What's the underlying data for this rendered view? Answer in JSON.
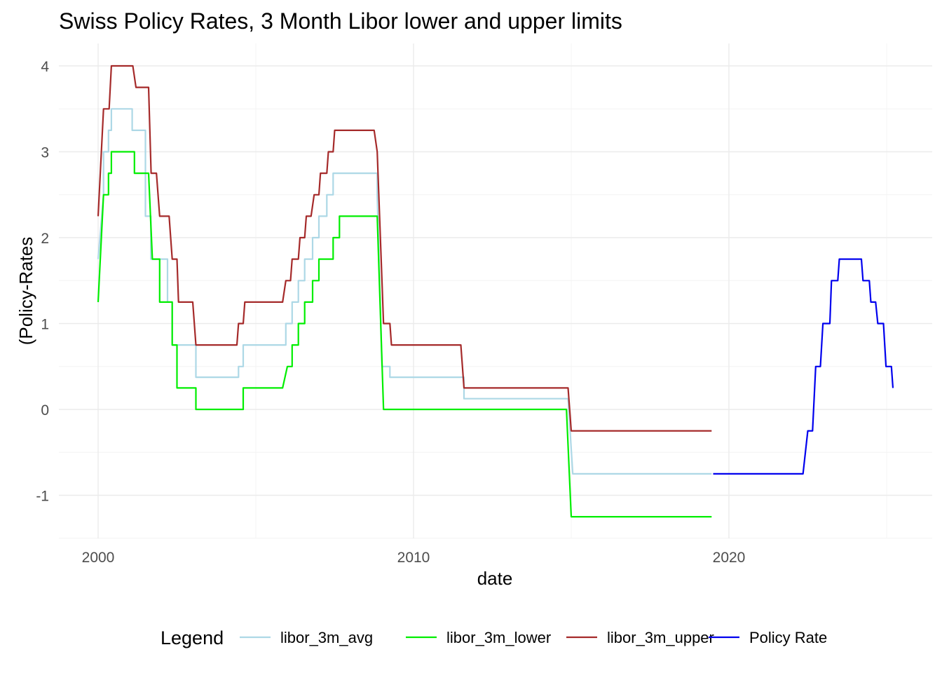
{
  "chart_data": {
    "type": "line",
    "title": "Swiss Policy Rates, 3 Month Libor lower and upper limits",
    "xlabel": "date",
    "ylabel": "(Policy-Rates",
    "x_ticks": [
      2000,
      2010,
      2020
    ],
    "y_ticks": [
      -1,
      0,
      1,
      2,
      3,
      4
    ],
    "xlim": [
      1999.0,
      2026.4
    ],
    "ylim": [
      -1.5,
      4.25
    ],
    "grid": true,
    "legend": {
      "title": "Legend",
      "position": "bottom",
      "entries": [
        "libor_3m_avg",
        "libor_3m_lower",
        "libor_3m_upper",
        "Policy Rate"
      ]
    },
    "series": [
      {
        "name": "libor_3m_avg",
        "color": "#add8e6",
        "points": [
          [
            2000.0,
            1.75
          ],
          [
            2000.17,
            2.5
          ],
          [
            2000.17,
            3.0
          ],
          [
            2000.33,
            3.0
          ],
          [
            2000.33,
            3.25
          ],
          [
            2000.42,
            3.25
          ],
          [
            2000.42,
            3.5
          ],
          [
            2001.08,
            3.5
          ],
          [
            2001.08,
            3.25
          ],
          [
            2001.5,
            3.25
          ],
          [
            2001.5,
            2.25
          ],
          [
            2001.67,
            2.25
          ],
          [
            2001.67,
            1.75
          ],
          [
            2002.2,
            1.75
          ],
          [
            2002.2,
            1.25
          ],
          [
            2002.35,
            1.25
          ],
          [
            2002.35,
            0.75
          ],
          [
            2003.1,
            0.75
          ],
          [
            2003.1,
            0.375
          ],
          [
            2004.45,
            0.375
          ],
          [
            2004.45,
            0.5
          ],
          [
            2004.6,
            0.5
          ],
          [
            2004.6,
            0.75
          ],
          [
            2005.95,
            0.75
          ],
          [
            2005.95,
            1.0
          ],
          [
            2006.15,
            1.0
          ],
          [
            2006.15,
            1.25
          ],
          [
            2006.35,
            1.25
          ],
          [
            2006.35,
            1.5
          ],
          [
            2006.55,
            1.5
          ],
          [
            2006.55,
            1.75
          ],
          [
            2006.8,
            1.75
          ],
          [
            2006.8,
            2.0
          ],
          [
            2007.0,
            2.0
          ],
          [
            2007.0,
            2.25
          ],
          [
            2007.25,
            2.25
          ],
          [
            2007.25,
            2.5
          ],
          [
            2007.45,
            2.5
          ],
          [
            2007.45,
            2.75
          ],
          [
            2008.85,
            2.75
          ],
          [
            2008.85,
            2.5
          ],
          [
            2009.0,
            0.5
          ],
          [
            2009.25,
            0.5
          ],
          [
            2009.25,
            0.375
          ],
          [
            2011.6,
            0.375
          ],
          [
            2011.6,
            0.125
          ],
          [
            2014.9,
            0.125
          ],
          [
            2015.05,
            -0.75
          ],
          [
            2019.45,
            -0.75
          ]
        ]
      },
      {
        "name": "libor_3m_lower",
        "color": "#00ee00",
        "points": [
          [
            2000.0,
            1.25
          ],
          [
            2000.17,
            2.5
          ],
          [
            2000.33,
            2.5
          ],
          [
            2000.33,
            2.75
          ],
          [
            2000.42,
            2.75
          ],
          [
            2000.42,
            3.0
          ],
          [
            2001.15,
            3.0
          ],
          [
            2001.15,
            2.75
          ],
          [
            2001.6,
            2.75
          ],
          [
            2001.72,
            1.75
          ],
          [
            2001.95,
            1.75
          ],
          [
            2001.95,
            1.25
          ],
          [
            2002.35,
            1.25
          ],
          [
            2002.35,
            0.75
          ],
          [
            2002.5,
            0.75
          ],
          [
            2002.5,
            0.25
          ],
          [
            2003.1,
            0.25
          ],
          [
            2003.1,
            0.0
          ],
          [
            2004.6,
            0.0
          ],
          [
            2004.6,
            0.25
          ],
          [
            2005.85,
            0.25
          ],
          [
            2006.0,
            0.5
          ],
          [
            2006.15,
            0.5
          ],
          [
            2006.15,
            0.75
          ],
          [
            2006.35,
            0.75
          ],
          [
            2006.35,
            1.0
          ],
          [
            2006.55,
            1.0
          ],
          [
            2006.55,
            1.25
          ],
          [
            2006.8,
            1.25
          ],
          [
            2006.8,
            1.5
          ],
          [
            2007.0,
            1.5
          ],
          [
            2007.0,
            1.75
          ],
          [
            2007.45,
            1.75
          ],
          [
            2007.45,
            2.0
          ],
          [
            2007.65,
            2.0
          ],
          [
            2007.65,
            2.25
          ],
          [
            2008.85,
            2.25
          ],
          [
            2009.05,
            0.0
          ],
          [
            2014.85,
            0.0
          ],
          [
            2015.0,
            -1.25
          ],
          [
            2019.45,
            -1.25
          ]
        ]
      },
      {
        "name": "libor_3m_upper",
        "color": "#a52a2a",
        "points": [
          [
            2000.0,
            2.25
          ],
          [
            2000.17,
            3.5
          ],
          [
            2000.35,
            3.5
          ],
          [
            2000.42,
            4.0
          ],
          [
            2001.1,
            4.0
          ],
          [
            2001.2,
            3.75
          ],
          [
            2001.6,
            3.75
          ],
          [
            2001.68,
            2.75
          ],
          [
            2001.85,
            2.75
          ],
          [
            2001.95,
            2.25
          ],
          [
            2002.25,
            2.25
          ],
          [
            2002.35,
            1.75
          ],
          [
            2002.5,
            1.75
          ],
          [
            2002.55,
            1.25
          ],
          [
            2003.0,
            1.25
          ],
          [
            2003.1,
            0.75
          ],
          [
            2004.4,
            0.75
          ],
          [
            2004.45,
            1.0
          ],
          [
            2004.6,
            1.0
          ],
          [
            2004.65,
            1.25
          ],
          [
            2005.85,
            1.25
          ],
          [
            2005.95,
            1.5
          ],
          [
            2006.1,
            1.5
          ],
          [
            2006.15,
            1.75
          ],
          [
            2006.35,
            1.75
          ],
          [
            2006.4,
            2.0
          ],
          [
            2006.55,
            2.0
          ],
          [
            2006.6,
            2.25
          ],
          [
            2006.75,
            2.25
          ],
          [
            2006.85,
            2.5
          ],
          [
            2007.0,
            2.5
          ],
          [
            2007.05,
            2.75
          ],
          [
            2007.25,
            2.75
          ],
          [
            2007.3,
            3.0
          ],
          [
            2007.45,
            3.0
          ],
          [
            2007.5,
            3.25
          ],
          [
            2008.75,
            3.25
          ],
          [
            2008.85,
            3.0
          ],
          [
            2009.05,
            1.0
          ],
          [
            2009.25,
            1.0
          ],
          [
            2009.3,
            0.75
          ],
          [
            2011.5,
            0.75
          ],
          [
            2011.6,
            0.25
          ],
          [
            2014.9,
            0.25
          ],
          [
            2015.0,
            -0.25
          ],
          [
            2019.45,
            -0.25
          ]
        ]
      },
      {
        "name": "Policy Rate",
        "color": "#0000ee",
        "points": [
          [
            2019.5,
            -0.75
          ],
          [
            2022.35,
            -0.75
          ],
          [
            2022.5,
            -0.25
          ],
          [
            2022.65,
            -0.25
          ],
          [
            2022.75,
            0.5
          ],
          [
            2022.9,
            0.5
          ],
          [
            2022.98,
            1.0
          ],
          [
            2023.2,
            1.0
          ],
          [
            2023.25,
            1.5
          ],
          [
            2023.45,
            1.5
          ],
          [
            2023.5,
            1.75
          ],
          [
            2024.2,
            1.75
          ],
          [
            2024.25,
            1.5
          ],
          [
            2024.45,
            1.5
          ],
          [
            2024.5,
            1.25
          ],
          [
            2024.65,
            1.25
          ],
          [
            2024.72,
            1.0
          ],
          [
            2024.9,
            1.0
          ],
          [
            2024.98,
            0.5
          ],
          [
            2025.15,
            0.5
          ],
          [
            2025.2,
            0.25
          ]
        ]
      }
    ]
  }
}
